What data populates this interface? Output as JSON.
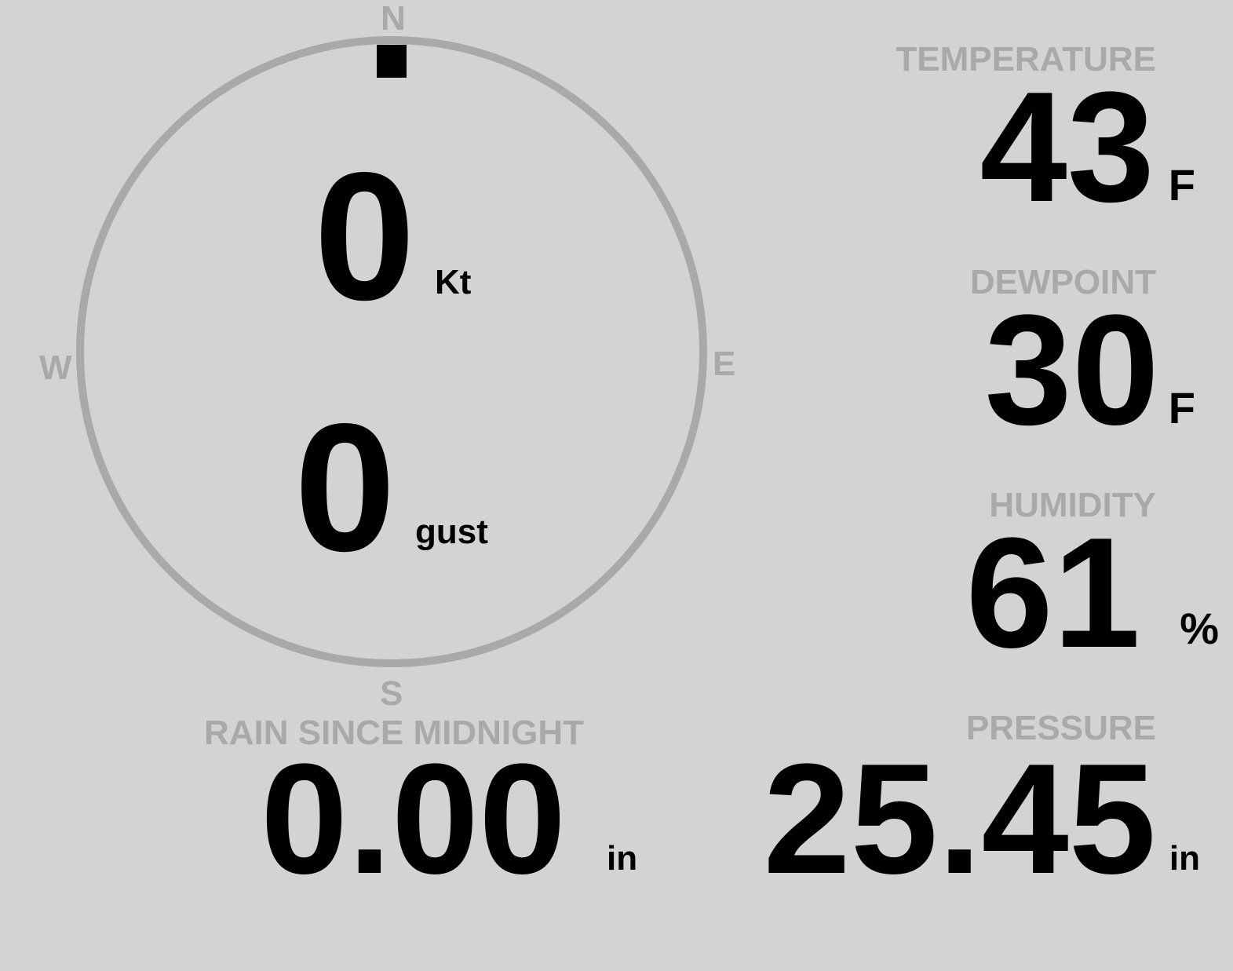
{
  "wind": {
    "speed": "0",
    "speed_unit": "Kt",
    "gust": "0",
    "gust_unit": "gust",
    "direction_deg": 0,
    "compass": {
      "n": "N",
      "e": "E",
      "s": "S",
      "w": "W"
    }
  },
  "temperature": {
    "label": "TEMPERATURE",
    "value": "43",
    "unit": "F"
  },
  "dewpoint": {
    "label": "DEWPOINT",
    "value": "30",
    "unit": "F"
  },
  "humidity": {
    "label": "HUMIDITY",
    "value": "61",
    "unit": "%"
  },
  "rain": {
    "label": "RAIN SINCE MIDNIGHT",
    "value": "0.00",
    "unit": "in"
  },
  "pressure": {
    "label": "PRESSURE",
    "value": "25.45",
    "unit": "in"
  },
  "colors": {
    "background": "#d3d3d3",
    "ring": "#a9a9a9",
    "text": "#000000",
    "label": "#a9a9a9"
  }
}
